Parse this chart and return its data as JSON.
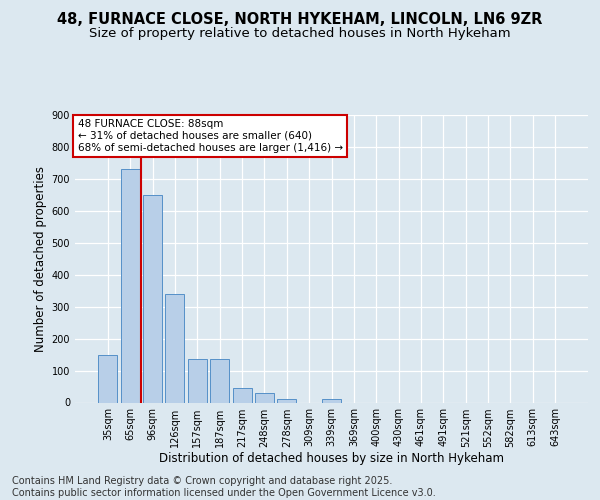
{
  "title_line1": "48, FURNACE CLOSE, NORTH HYKEHAM, LINCOLN, LN6 9ZR",
  "title_line2": "Size of property relative to detached houses in North Hykeham",
  "categories": [
    "35sqm",
    "65sqm",
    "96sqm",
    "126sqm",
    "157sqm",
    "187sqm",
    "217sqm",
    "248sqm",
    "278sqm",
    "309sqm",
    "339sqm",
    "369sqm",
    "400sqm",
    "430sqm",
    "461sqm",
    "491sqm",
    "521sqm",
    "552sqm",
    "582sqm",
    "613sqm",
    "643sqm"
  ],
  "values": [
    150,
    730,
    650,
    340,
    135,
    135,
    45,
    30,
    10,
    0,
    10,
    0,
    0,
    0,
    0,
    0,
    0,
    0,
    0,
    0,
    0
  ],
  "bar_color": "#b8cfe8",
  "bar_edge_color": "#5590c8",
  "ylabel": "Number of detached properties",
  "xlabel": "Distribution of detached houses by size in North Hykeham",
  "ylim": [
    0,
    900
  ],
  "yticks": [
    0,
    100,
    200,
    300,
    400,
    500,
    600,
    700,
    800,
    900
  ],
  "vline_x": 1.5,
  "vline_color": "#cc0000",
  "annotation_text": "48 FURNACE CLOSE: 88sqm\n← 31% of detached houses are smaller (640)\n68% of semi-detached houses are larger (1,416) →",
  "annotation_box_facecolor": "#ffffff",
  "annotation_box_edgecolor": "#cc0000",
  "footer_text": "Contains HM Land Registry data © Crown copyright and database right 2025.\nContains public sector information licensed under the Open Government Licence v3.0.",
  "bg_color": "#dce8f0",
  "grid_color": "#ffffff",
  "grid_alpha": 1.0,
  "title_fontsize": 10.5,
  "subtitle_fontsize": 9.5,
  "footer_fontsize": 7,
  "ylabel_fontsize": 8.5,
  "xlabel_fontsize": 8.5,
  "tick_fontsize": 7,
  "annot_fontsize": 7.5
}
